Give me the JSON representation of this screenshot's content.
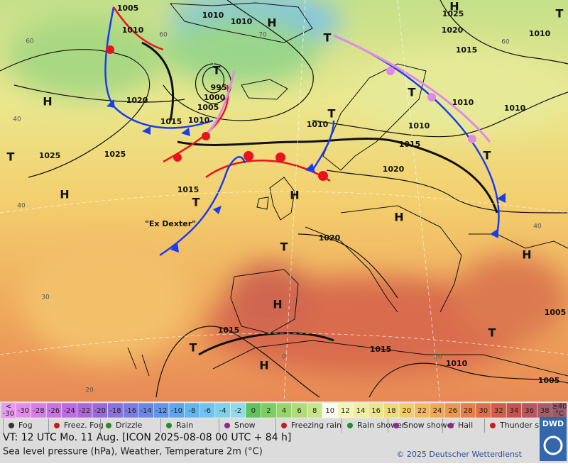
{
  "map": {
    "pressure_labels": [
      "1005",
      "1010",
      "1010",
      "1010",
      "1020",
      "1015",
      "1010",
      "1000",
      "1005",
      "995",
      "1025",
      "1025",
      "1015",
      "1010",
      "1015",
      "1020",
      "1020",
      "1010",
      "1010",
      "1010",
      "1025",
      "1020",
      "1015",
      "1010",
      "1015",
      "1015",
      "1010",
      "1005",
      "1005"
    ],
    "centers": [
      "H",
      "H",
      "H",
      "H",
      "H",
      "H",
      "H",
      "H",
      "T",
      "T",
      "T",
      "T",
      "T",
      "T",
      "T",
      "T",
      "T",
      "T",
      "H",
      "T"
    ],
    "annotation": "\"Ex Dexter\"",
    "isotherm_labels": [
      "60",
      "60",
      "70",
      "60",
      "40",
      "40",
      "30",
      "20",
      "0",
      "20",
      "40"
    ]
  },
  "colorbar": {
    "low": [
      "<",
      "-30"
    ],
    "values": [
      -30,
      -28,
      -26,
      -24,
      -22,
      -20,
      -18,
      -16,
      -14,
      -12,
      -10,
      -8,
      -6,
      -4,
      -2,
      0,
      2,
      4,
      6,
      8,
      10,
      12,
      14,
      16,
      18,
      20,
      22,
      24,
      26,
      28,
      30,
      32,
      34,
      36,
      38
    ],
    "colors": [
      "#e38be8",
      "#d67ee6",
      "#c873e2",
      "#bb6cdf",
      "#ad67dc",
      "#9a6ad9",
      "#8b72dc",
      "#7b7ce0",
      "#6c88e4",
      "#6196e8",
      "#5ea6ec",
      "#63b5ee",
      "#6fc3ee",
      "#7fd0ec",
      "#92dbe6",
      "#5fc45a",
      "#7ccd62",
      "#97d56c",
      "#b0dc78",
      "#c8e488",
      "#fbfbf2",
      "#f4f4b8",
      "#eeeea2",
      "#ece58c",
      "#efda78",
      "#f2cd68",
      "#f1bd5c",
      "#eeaa52",
      "#eb984c",
      "#e68149",
      "#df6d48",
      "#d55c4a",
      "#c9524f",
      "#b9575c",
      "#a75d66"
    ],
    "high": [
      "≥40",
      "°C"
    ]
  },
  "legend": [
    "Fog",
    "Freez. Fog",
    "Drizzle",
    "Rain",
    "Snow",
    "Freezing rain",
    "Rain shower",
    "Snow shower",
    "Hail",
    "Thunder storm"
  ],
  "footer": {
    "valid_time": "VT: 12 UTC Mo.  11 Aug. [ICON 2025-08-08  00 UTC + 84 h]",
    "subtitle": "Sea level pressure (hPa), Weather, Temperature 2m (°C)",
    "copyright": "© 2025 Deutscher Wetterdienst",
    "logo": "DWD"
  }
}
